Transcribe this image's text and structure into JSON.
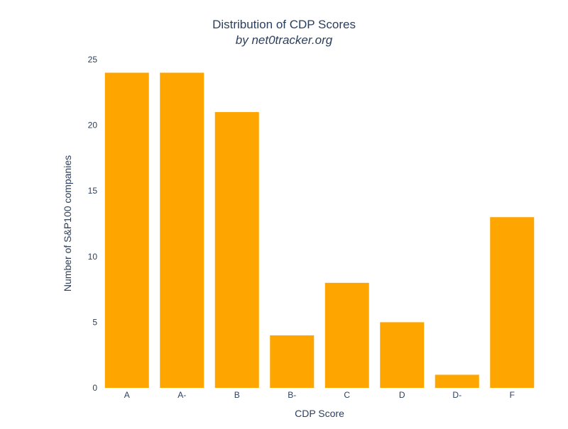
{
  "chart_data": {
    "type": "bar",
    "title": "Distribution of CDP Scores",
    "subtitle": "by net0tracker.org",
    "xlabel": "CDP Score",
    "ylabel": "Number of S&P100 companies",
    "categories": [
      "A",
      "A-",
      "B",
      "B-",
      "C",
      "D",
      "D-",
      "F"
    ],
    "values": [
      24,
      24,
      21,
      4,
      8,
      5,
      1,
      13
    ],
    "ylim": [
      0,
      25
    ],
    "yticks": [
      0,
      5,
      10,
      15,
      20,
      25
    ],
    "grid": false,
    "bar_color": "#FFA500"
  }
}
